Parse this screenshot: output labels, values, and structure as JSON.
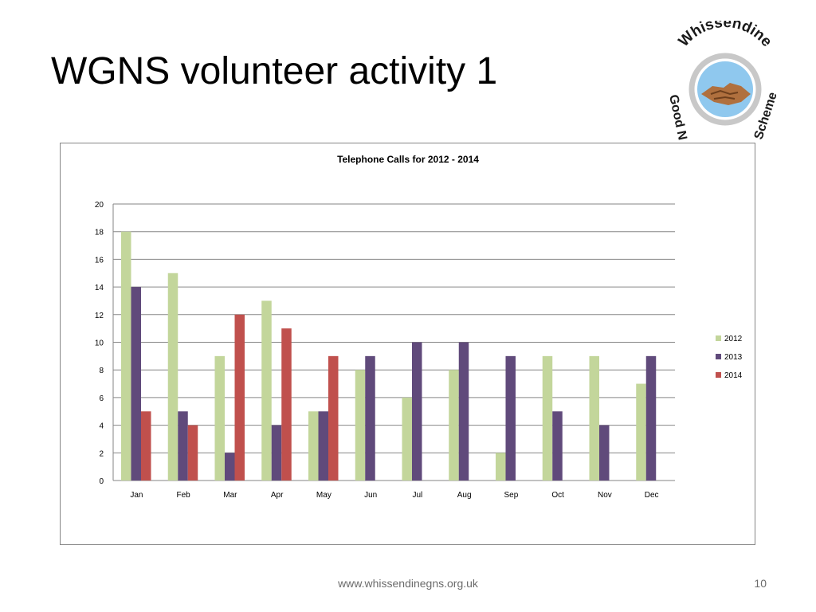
{
  "slide": {
    "title": "WGNS volunteer activity 1",
    "footer_url": "www.whissendinegns.org.uk",
    "page_number": "10"
  },
  "logo": {
    "top_text": "Whissendine",
    "left_text": "Good N",
    "right_text": "Scheme",
    "icon": "handshake-icon",
    "text_color": "#1a1a1a",
    "ring_color": "#c8c8c8",
    "sky_color": "#8fc8ee"
  },
  "chart_data": {
    "type": "bar",
    "title": "Telephone Calls for 2012 - 2014",
    "categories": [
      "Jan",
      "Feb",
      "Mar",
      "Apr",
      "May",
      "Jun",
      "Jul",
      "Aug",
      "Sep",
      "Oct",
      "Nov",
      "Dec"
    ],
    "series": [
      {
        "name": "2012",
        "color": "#c3d69b",
        "values": [
          18,
          15,
          9,
          13,
          5,
          8,
          6,
          8,
          2,
          9,
          9,
          7
        ]
      },
      {
        "name": "2013",
        "color": "#604a7b",
        "values": [
          14,
          5,
          2,
          4,
          5,
          9,
          10,
          10,
          9,
          5,
          4,
          9
        ]
      },
      {
        "name": "2014",
        "color": "#c0504d",
        "values": [
          5,
          4,
          12,
          11,
          9,
          null,
          null,
          null,
          null,
          null,
          null,
          null
        ]
      }
    ],
    "ylim": [
      0,
      20
    ],
    "yticks": [
      0,
      2,
      4,
      6,
      8,
      10,
      12,
      14,
      16,
      18,
      20
    ],
    "grid": true,
    "legend_position": "right"
  }
}
